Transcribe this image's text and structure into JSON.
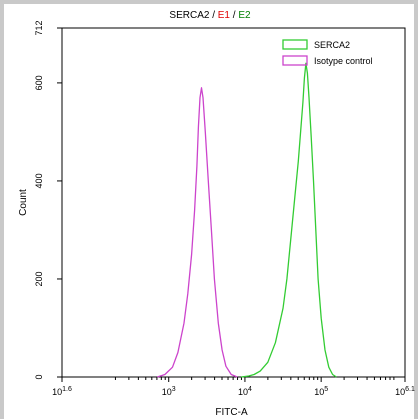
{
  "chart_data": {
    "type": "histogram",
    "title_parts": [
      {
        "text": "SERCA2",
        "color": "#000000"
      },
      {
        "text": " / ",
        "color": "#000000"
      },
      {
        "text": "E1",
        "color": "#e00000"
      },
      {
        "text": " / ",
        "color": "#000000"
      },
      {
        "text": "E2",
        "color": "#008000"
      }
    ],
    "xlabel": "FITC-A",
    "ylabel": "Count",
    "xscale": "log",
    "xlim": [
      1.6,
      6.1
    ],
    "ylim": [
      0,
      712
    ],
    "x_ticks": [
      {
        "base": "10",
        "exp": "1.6",
        "value": 1.6
      },
      {
        "base": "10",
        "exp": "3",
        "value": 3
      },
      {
        "base": "10",
        "exp": "4",
        "value": 4
      },
      {
        "base": "10",
        "exp": "5",
        "value": 5
      },
      {
        "base": "10",
        "exp": "6.1",
        "value": 6.1
      }
    ],
    "y_ticks": [
      {
        "label": "0",
        "value": 0
      },
      {
        "label": "200",
        "value": 200
      },
      {
        "label": "400",
        "value": 400
      },
      {
        "label": "600",
        "value": 600
      },
      {
        "label": "712",
        "value": 712
      }
    ],
    "legend_position": "top-right",
    "series": [
      {
        "name": "SERCA2",
        "color": "#33cc33",
        "points": [
          [
            3.95,
            0
          ],
          [
            4.05,
            2
          ],
          [
            4.12,
            5
          ],
          [
            4.2,
            12
          ],
          [
            4.3,
            30
          ],
          [
            4.4,
            70
          ],
          [
            4.5,
            140
          ],
          [
            4.55,
            200
          ],
          [
            4.6,
            280
          ],
          [
            4.65,
            360
          ],
          [
            4.7,
            440
          ],
          [
            4.73,
            500
          ],
          [
            4.76,
            560
          ],
          [
            4.78,
            610
          ],
          [
            4.8,
            640
          ],
          [
            4.82,
            620
          ],
          [
            4.84,
            570
          ],
          [
            4.87,
            490
          ],
          [
            4.9,
            400
          ],
          [
            4.93,
            300
          ],
          [
            4.96,
            200
          ],
          [
            5.0,
            120
          ],
          [
            5.05,
            55
          ],
          [
            5.1,
            20
          ],
          [
            5.15,
            5
          ],
          [
            5.2,
            0
          ]
        ]
      },
      {
        "name": "Isotype control",
        "color": "#cc44cc",
        "points": [
          [
            2.85,
            0
          ],
          [
            2.95,
            5
          ],
          [
            3.05,
            20
          ],
          [
            3.12,
            50
          ],
          [
            3.2,
            110
          ],
          [
            3.25,
            170
          ],
          [
            3.3,
            250
          ],
          [
            3.34,
            340
          ],
          [
            3.37,
            430
          ],
          [
            3.39,
            510
          ],
          [
            3.41,
            570
          ],
          [
            3.43,
            590
          ],
          [
            3.45,
            570
          ],
          [
            3.48,
            500
          ],
          [
            3.52,
            400
          ],
          [
            3.56,
            300
          ],
          [
            3.6,
            200
          ],
          [
            3.65,
            110
          ],
          [
            3.7,
            55
          ],
          [
            3.75,
            22
          ],
          [
            3.82,
            5
          ],
          [
            3.9,
            0
          ]
        ]
      }
    ]
  }
}
